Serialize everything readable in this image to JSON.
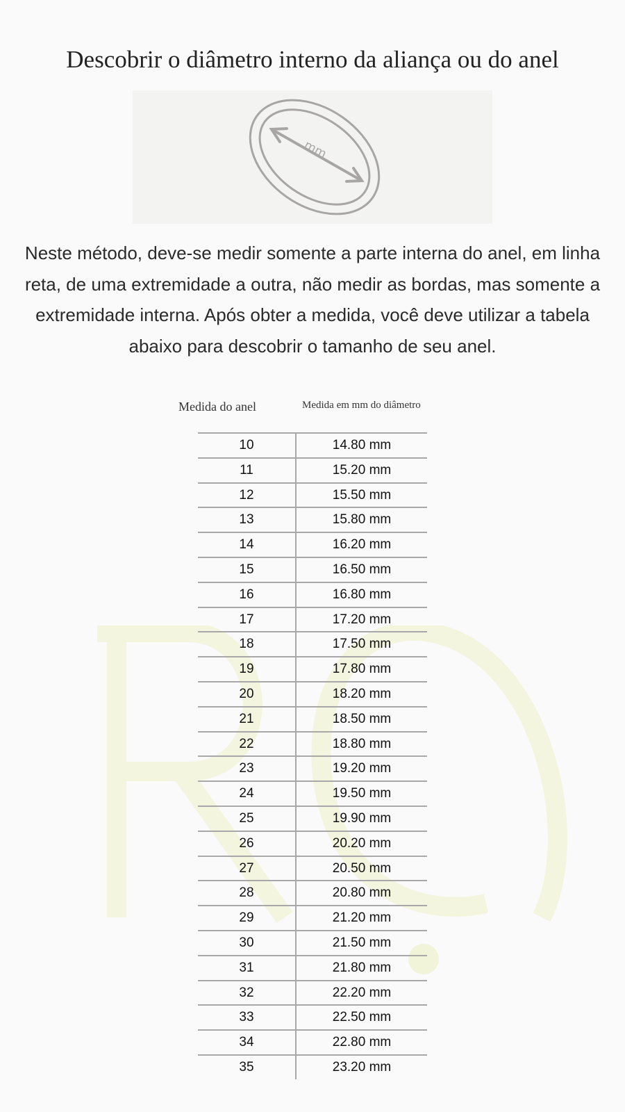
{
  "title": "Descobrir o diâmetro interno da aliança ou do anel",
  "figure": {
    "label": "mm",
    "stroke_color": "#a8a6a4"
  },
  "paragraph": "Neste método, deve-se medir somente a parte interna do anel, em linha reta, de uma extremidade a outra, não medir as bordas, mas somente a extremidade interna. Após obter a medida, você deve utilizar a tabela abaixo para descobrir o tamanho de seu anel.",
  "table": {
    "headers": [
      "Medida do anel",
      "Medida em mm do diâmetro"
    ],
    "rows": [
      [
        "10",
        "14.80 mm"
      ],
      [
        "11",
        "15.20 mm"
      ],
      [
        "12",
        "15.50 mm"
      ],
      [
        "13",
        "15.80 mm"
      ],
      [
        "14",
        "16.20 mm"
      ],
      [
        "15",
        "16.50 mm"
      ],
      [
        "16",
        "16.80 mm"
      ],
      [
        "17",
        "17.20 mm"
      ],
      [
        "18",
        "17.50 mm"
      ],
      [
        "19",
        "17.80 mm"
      ],
      [
        "20",
        "18.20 mm"
      ],
      [
        "21",
        "18.50 mm"
      ],
      [
        "22",
        "18.80 mm"
      ],
      [
        "23",
        "19.20 mm"
      ],
      [
        "24",
        "19.50 mm"
      ],
      [
        "25",
        "19.90 mm"
      ],
      [
        "26",
        "20.20 mm"
      ],
      [
        "27",
        "20.50 mm"
      ],
      [
        "28",
        "20.80 mm"
      ],
      [
        "29",
        "21.20 mm"
      ],
      [
        "30",
        "21.50 mm"
      ],
      [
        "31",
        "21.80 mm"
      ],
      [
        "32",
        "22.20 mm"
      ],
      [
        "33",
        "22.50 mm"
      ],
      [
        "34",
        "22.80 mm"
      ],
      [
        "35",
        "23.20 mm"
      ]
    ]
  },
  "watermark": {
    "text": "RC.",
    "color": "#f4f6e2"
  }
}
